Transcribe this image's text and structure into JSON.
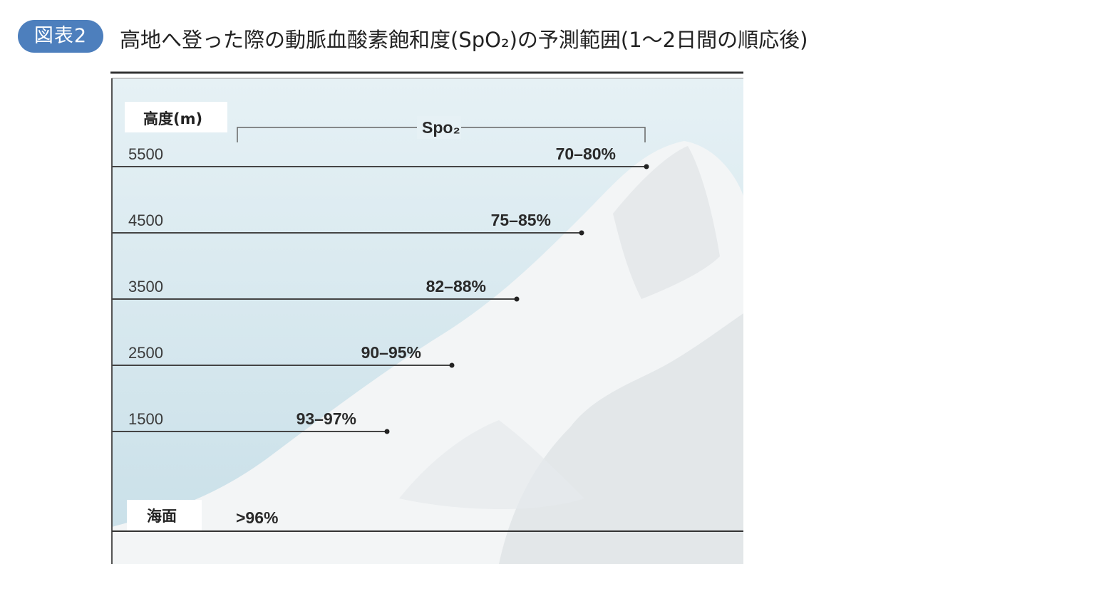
{
  "figure": {
    "badge": "図表2",
    "title": "高地へ登った際の動脈血酸素飽和度(SpO₂)の予測範囲(1～2日間の順応後)"
  },
  "chart_data": {
    "type": "bar",
    "title": "高地へ登った際の動脈血酸素飽和度(SpO₂)の予測範囲(1～2日間の順応後)",
    "ylabel": "高度(m)",
    "value_header": "Spo₂",
    "sea_level_label": "海面",
    "sea_level_value": ">96%",
    "categories": [
      "1500",
      "2500",
      "3500",
      "4500",
      "5500"
    ],
    "altitudes_m": [
      1500,
      2500,
      3500,
      4500,
      5500
    ],
    "spo2_labels": [
      "93–97%",
      "90–95%",
      "82–88%",
      "75–85%",
      "70–80%"
    ],
    "spo2_low": [
      93,
      90,
      82,
      75,
      70
    ],
    "spo2_high": [
      97,
      95,
      88,
      85,
      80
    ],
    "ylim": [
      0,
      6000
    ],
    "grid": false
  },
  "colors": {
    "badge": "#4d7fbd",
    "sky": "#cfe4ec",
    "mountain": "#f3f5f6",
    "line": "#333333"
  }
}
